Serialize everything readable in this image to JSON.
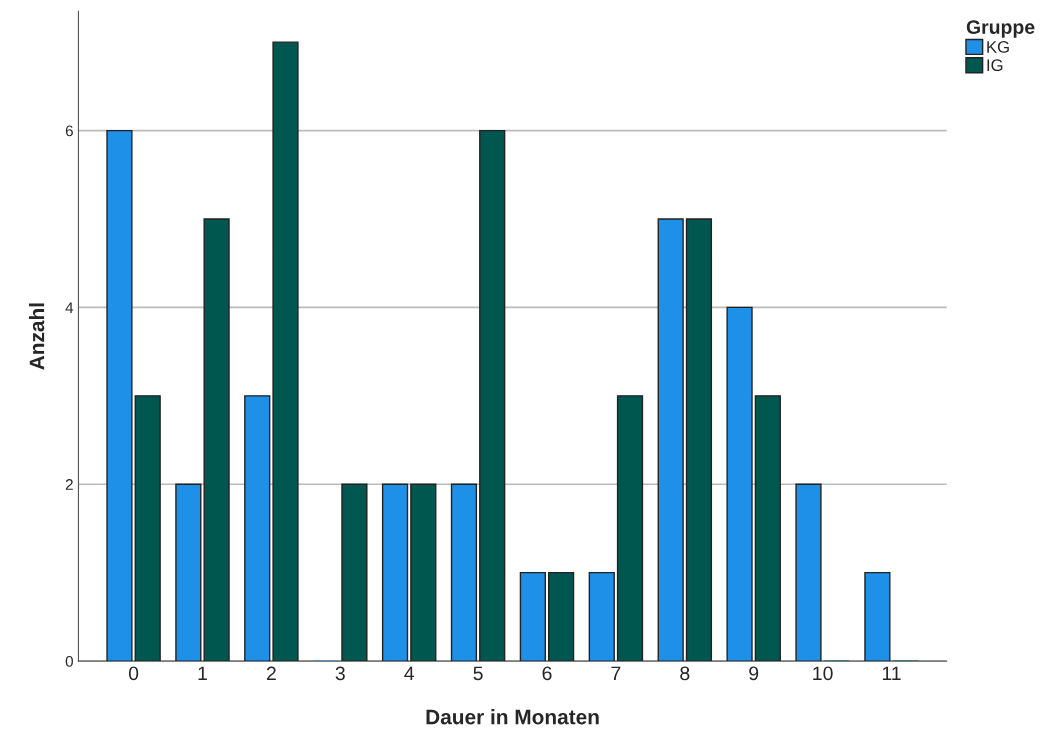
{
  "chart_data": {
    "type": "bar",
    "categories": [
      "0",
      "1",
      "2",
      "3",
      "4",
      "5",
      "6",
      "7",
      "8",
      "9",
      "10",
      "11"
    ],
    "series": [
      {
        "name": "KG",
        "color": "#1e90e8",
        "values": [
          6,
          2,
          3,
          0,
          2,
          2,
          1,
          1,
          5,
          4,
          2,
          1
        ]
      },
      {
        "name": "IG",
        "color": "#00574f",
        "values": [
          3,
          5,
          7,
          2,
          2,
          6,
          1,
          3,
          5,
          3,
          0,
          0
        ]
      }
    ],
    "xlabel": "Dauer in Monaten",
    "ylabel": "Anzahl",
    "legend_title": "Gruppe",
    "ylim": [
      0,
      7.35
    ],
    "yticks": [
      0,
      2,
      4,
      6
    ],
    "grid": "y",
    "legend": "top right"
  }
}
